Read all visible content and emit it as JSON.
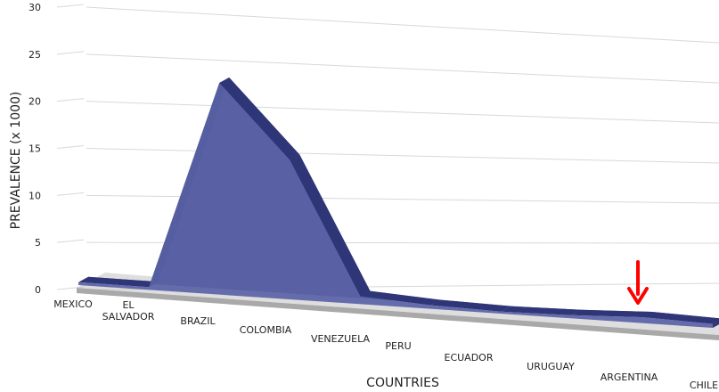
{
  "chart_data": {
    "type": "area",
    "xlabel": "COUNTRIES",
    "ylabel": "PREVALENCE (x 1000)",
    "ylim": [
      0,
      30
    ],
    "yticks": [
      "0",
      "5",
      "10",
      "15",
      "20",
      "25",
      "30"
    ],
    "categories": [
      "MEXICO",
      "EL SALVADOR",
      "BRAZIL",
      "COLOMBIA",
      "VENEZUELA",
      "PERU",
      "ECUADOR",
      "URUGUAY",
      "ARGENTINA",
      "CHILE"
    ],
    "category_labels": [
      [
        "MEXICO"
      ],
      [
        "EL",
        "SALVADOR"
      ],
      [
        "BRAZIL"
      ],
      [
        "COLOMBIA"
      ],
      [
        "VENEZUELA"
      ],
      [
        "PERU"
      ],
      [
        "ECUADOR"
      ],
      [
        "URUGUAY"
      ],
      [
        "ARGENTINA"
      ],
      [
        "CHILE"
      ]
    ],
    "values": [
      0.3,
      0.3,
      24.5,
      17.0,
      1.0,
      0.5,
      0.3,
      0.5,
      1.0,
      0.7
    ],
    "grid": true,
    "perspective_3d": true,
    "highlighted_category": "ARGENTINA",
    "colors": {
      "area_fill": "#5A62A6",
      "area_top": "#2F3677",
      "area_edge": "#3A4080",
      "floor": "#A9A9A9",
      "grid": "#D8D8D8",
      "marker_arrow": "#FF0000"
    }
  }
}
